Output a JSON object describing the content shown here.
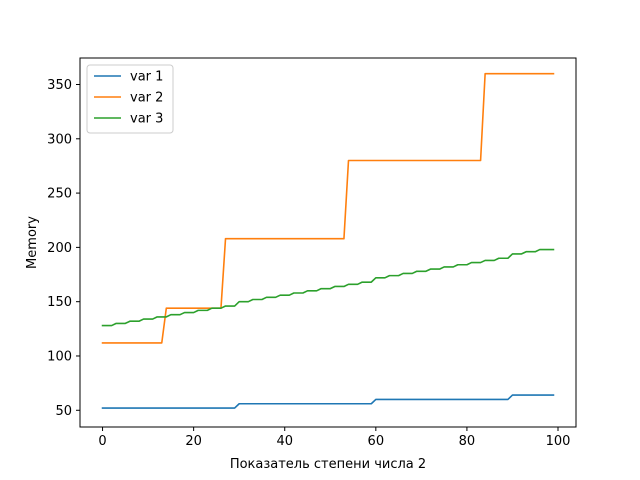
{
  "chart_data": {
    "type": "line",
    "xlabel": "Показатель степени числа 2",
    "ylabel": "Memory",
    "xlim": [
      -4.95,
      103.95
    ],
    "ylim": [
      34.6,
      374.4
    ],
    "xticks": [
      0,
      20,
      40,
      60,
      80,
      100
    ],
    "yticks": [
      50,
      100,
      150,
      200,
      250,
      300,
      350
    ],
    "grid": false,
    "legend_position": "top-left",
    "series": [
      {
        "name": "var 1",
        "color": "#1f77b4",
        "steps": [
          [
            0,
            52
          ],
          [
            30,
            56
          ],
          [
            60,
            60
          ],
          [
            90,
            64
          ]
        ],
        "x_end": 99
      },
      {
        "name": "var 2",
        "color": "#ff7f0e",
        "steps": [
          [
            0,
            112
          ],
          [
            14,
            144
          ],
          [
            27,
            208
          ],
          [
            54,
            280
          ],
          [
            84,
            360
          ]
        ],
        "x_end": 99
      },
      {
        "name": "var 3",
        "color": "#2ca02c",
        "steps": [
          [
            0,
            128
          ],
          [
            3,
            130
          ],
          [
            6,
            132
          ],
          [
            9,
            134
          ],
          [
            12,
            136
          ],
          [
            15,
            138
          ],
          [
            18,
            140
          ],
          [
            21,
            142
          ],
          [
            24,
            144
          ],
          [
            27,
            146
          ],
          [
            30,
            150
          ],
          [
            33,
            152
          ],
          [
            36,
            154
          ],
          [
            39,
            156
          ],
          [
            42,
            158
          ],
          [
            45,
            160
          ],
          [
            48,
            162
          ],
          [
            51,
            164
          ],
          [
            54,
            166
          ],
          [
            57,
            168
          ],
          [
            60,
            172
          ],
          [
            63,
            174
          ],
          [
            66,
            176
          ],
          [
            69,
            178
          ],
          [
            72,
            180
          ],
          [
            75,
            182
          ],
          [
            78,
            184
          ],
          [
            81,
            186
          ],
          [
            84,
            188
          ],
          [
            87,
            190
          ],
          [
            90,
            194
          ],
          [
            93,
            196
          ],
          [
            96,
            198
          ]
        ],
        "x_end": 99
      }
    ]
  }
}
